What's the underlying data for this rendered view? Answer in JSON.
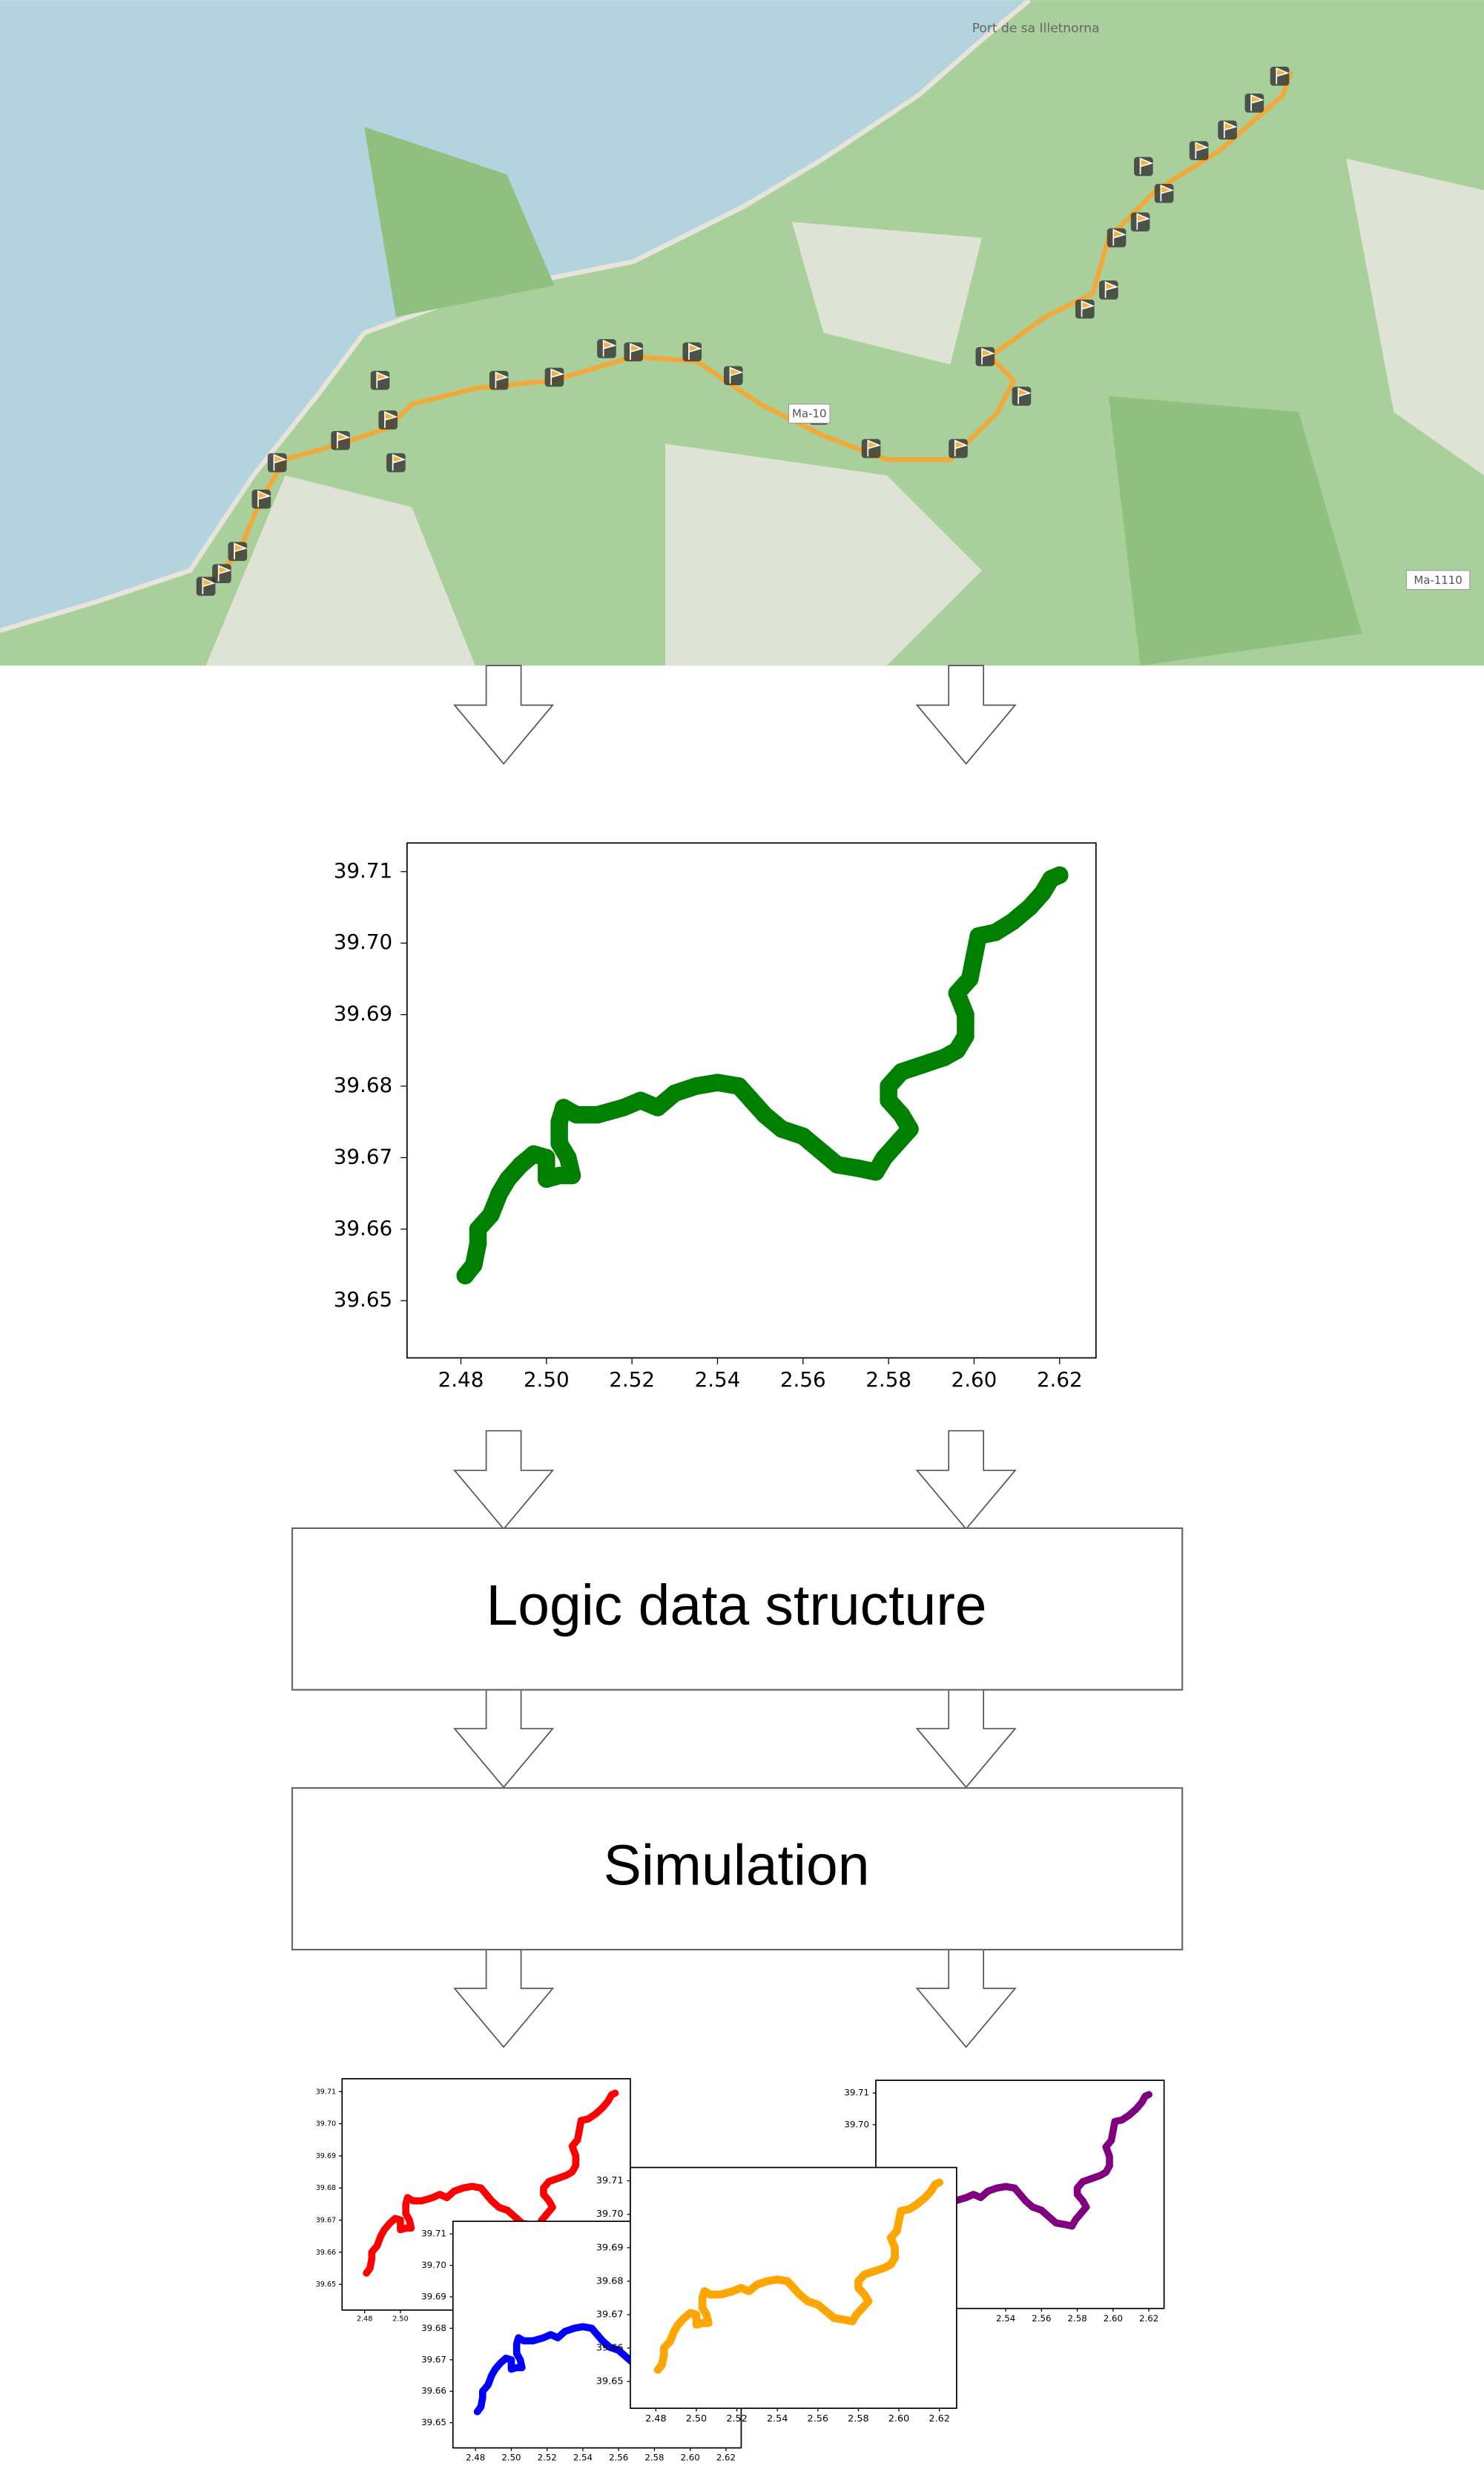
{
  "map": {
    "labels": [
      "Ma-10",
      "Ma-1110",
      "Port de sa Illetnorna"
    ]
  },
  "steps": [
    "Logic data structure",
    "Simulation"
  ],
  "chart_data": [
    {
      "type": "line",
      "color": "#008000",
      "x": [
        2.481,
        2.483,
        2.484,
        2.484,
        2.487,
        2.489,
        2.491,
        2.494,
        2.497,
        2.5,
        2.5,
        2.503,
        2.506,
        2.505,
        2.503,
        2.503,
        2.504,
        2.507,
        2.512,
        2.518,
        2.522,
        2.526,
        2.53,
        2.535,
        2.54,
        2.545,
        2.548,
        2.551,
        2.555,
        2.56,
        2.564,
        2.568,
        2.573,
        2.577,
        2.579,
        2.582,
        2.585,
        2.583,
        2.58,
        2.58,
        2.583,
        2.588,
        2.593,
        2.596,
        2.598,
        2.598,
        2.596,
        2.599,
        2.6,
        2.601,
        2.605,
        2.609,
        2.613,
        2.616,
        2.618,
        2.62
      ],
      "values": [
        39.6535,
        39.655,
        39.658,
        39.66,
        39.662,
        39.665,
        39.667,
        39.669,
        39.6705,
        39.67,
        39.667,
        39.6675,
        39.6675,
        39.67,
        39.672,
        39.675,
        39.677,
        39.676,
        39.676,
        39.677,
        39.678,
        39.677,
        39.679,
        39.68,
        39.6805,
        39.68,
        39.678,
        39.676,
        39.674,
        39.673,
        39.671,
        39.669,
        39.6685,
        39.668,
        39.67,
        39.672,
        39.674,
        39.676,
        39.678,
        39.68,
        39.682,
        39.683,
        39.684,
        39.685,
        39.687,
        39.69,
        39.693,
        39.695,
        39.698,
        39.701,
        39.7015,
        39.703,
        39.705,
        39.707,
        39.709,
        39.7095
      ],
      "xlim": [
        2.4674,
        2.6285
      ],
      "ylim": [
        39.642,
        39.714
      ],
      "xticks": [
        2.48,
        {
          "value": 2.5,
          "label": "2.50"
        },
        2.52,
        2.54,
        2.56,
        2.58,
        {
          "value": 2.6,
          "label": "2.60"
        },
        2.62
      ],
      "yticks": [
        39.65,
        39.66,
        39.67,
        39.68,
        39.69,
        {
          "value": 39.7,
          "label": "39.70"
        },
        39.71
      ]
    },
    {
      "type": "line",
      "color": "#ff0000",
      "xlim": [
        2.4674,
        2.6285
      ],
      "ylim": [
        39.642,
        39.714
      ],
      "xticks": [
        2.48,
        {
          "value": 2.5,
          "label": "2.50"
        }
      ],
      "yticks": [
        39.65,
        39.66,
        39.67,
        39.68,
        39.69,
        {
          "value": 39.7,
          "label": "39.70"
        },
        39.71
      ]
    },
    {
      "type": "line",
      "color": "#800080",
      "xlim": [
        2.4674,
        2.6285
      ],
      "ylim": [
        39.642,
        39.714
      ],
      "xticks": [
        2.54,
        2.56,
        2.58,
        {
          "value": 2.6,
          "label": "2.60"
        },
        2.62
      ],
      "yticks": [
        {
          "value": 39.7,
          "label": "39.70"
        },
        39.71
      ]
    },
    {
      "type": "line",
      "color": "#0000ff",
      "xlim": [
        2.4674,
        2.6285
      ],
      "ylim": [
        39.642,
        39.714
      ],
      "xticks": [
        2.48,
        {
          "value": 2.5,
          "label": "2.50"
        },
        2.52,
        2.54,
        2.56,
        2.58,
        {
          "value": 2.6,
          "label": "2.60"
        },
        2.62
      ],
      "yticks": [
        39.65,
        39.66,
        39.67,
        39.68,
        39.69,
        {
          "value": 39.7,
          "label": "39.70"
        },
        39.71
      ]
    },
    {
      "type": "line",
      "color": "#ffa500",
      "xlim": [
        2.4674,
        2.6285
      ],
      "ylim": [
        39.642,
        39.714
      ],
      "xticks": [
        2.48,
        {
          "value": 2.5,
          "label": "2.50"
        },
        2.52,
        2.54,
        2.56,
        2.58,
        {
          "value": 2.6,
          "label": "2.60"
        },
        2.62
      ],
      "yticks": [
        39.65,
        39.66,
        39.67,
        39.68,
        39.69,
        {
          "value": 39.7,
          "label": "39.70"
        },
        39.71
      ]
    }
  ]
}
